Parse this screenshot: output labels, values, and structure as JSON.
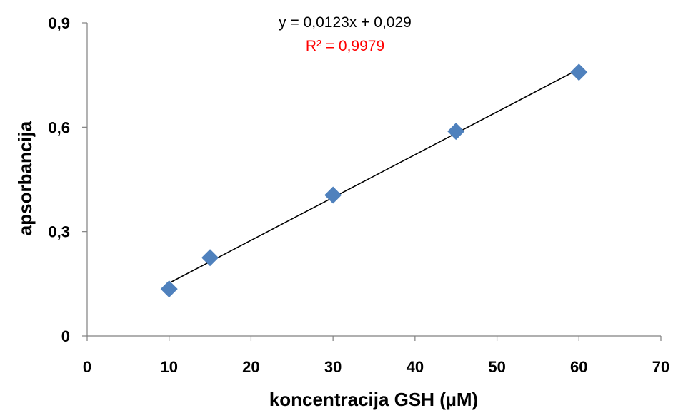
{
  "chart_data": {
    "type": "scatter",
    "title": "",
    "xlabel": "koncentracija GSH (µM)",
    "ylabel": "apsorbancija",
    "xlim": [
      0,
      70
    ],
    "ylim": [
      0,
      0.9
    ],
    "x_ticks": [
      0,
      10,
      20,
      30,
      40,
      50,
      60,
      70
    ],
    "x_tick_labels": [
      "0",
      "10",
      "20",
      "30",
      "40",
      "50",
      "60",
      "70"
    ],
    "y_ticks": [
      0,
      0.3,
      0.6,
      0.9
    ],
    "y_tick_labels": [
      "0",
      "0,3",
      "0,6",
      "0,9"
    ],
    "grid": false,
    "series": [
      {
        "marker": "diamond",
        "color": "#4F81BD",
        "points": [
          {
            "x": 10,
            "y": 0.135
          },
          {
            "x": 15,
            "y": 0.225
          },
          {
            "x": 30,
            "y": 0.405
          },
          {
            "x": 45,
            "y": 0.588
          },
          {
            "x": 60,
            "y": 0.758
          }
        ]
      }
    ],
    "trendline": {
      "type": "linear",
      "slope": 0.0123,
      "intercept": 0.029,
      "x_range": [
        10,
        60
      ],
      "color": "#000000",
      "equation_text": "y = 0,0123x + 0,029",
      "r2_text": "R² = 0,9979",
      "equation_color": "#000000",
      "r2_color": "#FF0000"
    }
  }
}
